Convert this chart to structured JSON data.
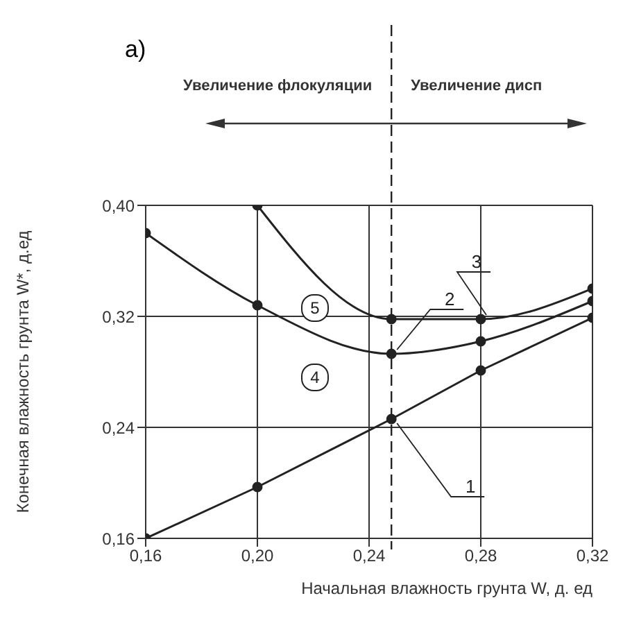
{
  "chart_data": {
    "type": "line",
    "title": "а)",
    "xlabel": "Начальная влажность грунта W, д. ед",
    "ylabel": "Конечная влажность грунта W*, д.ед",
    "series": [
      {
        "name": "1",
        "x": [
          0.16,
          0.2,
          0.248,
          0.28,
          0.32
        ],
        "values": [
          0.16,
          0.197,
          0.246,
          0.281,
          0.319
        ],
        "color": "#222222"
      },
      {
        "name": "2",
        "x": [
          0.16,
          0.2,
          0.248,
          0.28,
          0.32
        ],
        "values": [
          0.38,
          0.328,
          0.293,
          0.302,
          0.331
        ],
        "color": "#222222"
      },
      {
        "name": "3",
        "x": [
          0.2,
          0.248,
          0.28,
          0.32
        ],
        "values": [
          0.4,
          0.318,
          0.318,
          0.34
        ],
        "color": "#222222"
      }
    ],
    "xlim": [
      0.16,
      0.32
    ],
    "ylim": [
      0.16,
      0.4
    ],
    "xticks": [
      {
        "value": 0.16,
        "label": "0,16"
      },
      {
        "value": 0.2,
        "label": "0,20"
      },
      {
        "value": 0.24,
        "label": "0,24"
      },
      {
        "value": 0.28,
        "label": "0,28"
      },
      {
        "value": 0.32,
        "label": "0,32"
      }
    ],
    "yticks": [
      {
        "value": 0.16,
        "label": "0,16"
      },
      {
        "value": 0.24,
        "label": "0,24"
      },
      {
        "value": 0.32,
        "label": "0,32"
      },
      {
        "value": 0.4,
        "label": "0,40"
      }
    ],
    "grid": true,
    "marker": "circle",
    "line_style": "solid",
    "ref_lines": [
      {
        "axis": "x",
        "value": 0.248,
        "line_style": "dashed",
        "color": "#222222"
      }
    ],
    "annotations": [
      "Увеличение флокуляции",
      "Увеличение дисп",
      "4",
      "5"
    ]
  }
}
